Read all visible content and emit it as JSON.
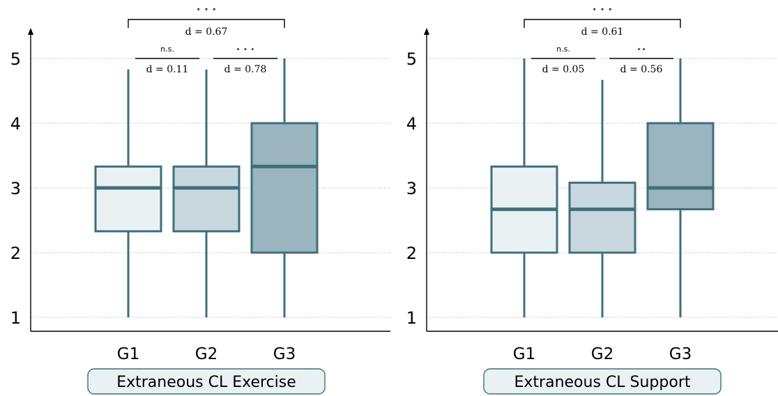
{
  "chart_data": [
    {
      "type": "box",
      "title": "Extraneous CL Exercise",
      "categories": [
        "G1",
        "G2",
        "G3"
      ],
      "yticks": [
        "1",
        "2",
        "3",
        "4",
        "5"
      ],
      "ylim": [
        0.85,
        5.5
      ],
      "grid": true,
      "series": [
        {
          "category": "G1",
          "min": 1,
          "q1": 2.33,
          "median": 3.0,
          "q3": 3.33,
          "max": 4.83,
          "fill": "#eaf1f3"
        },
        {
          "category": "G2",
          "min": 1,
          "q1": 2.33,
          "median": 3.0,
          "q3": 3.33,
          "max": 4.83,
          "fill": "#c9d8de"
        },
        {
          "category": "G3",
          "min": 1,
          "q1": 2.0,
          "median": 3.33,
          "q3": 4.0,
          "max": 5.0,
          "fill": "#9ab5be"
        }
      ],
      "comparisons": [
        {
          "from": "G1",
          "to": "G2",
          "label": "n.s.",
          "effect": "d = 0.11"
        },
        {
          "from": "G2",
          "to": "G3",
          "label": "⋆ ⋆ ⋆",
          "effect": "d = 0.78"
        },
        {
          "from": "G1",
          "to": "G3",
          "label": "⋆ ⋆ ⋆",
          "effect": "d = 0.67"
        }
      ]
    },
    {
      "type": "box",
      "title": "Extraneous CL Support",
      "categories": [
        "G1",
        "G2",
        "G3"
      ],
      "yticks": [
        "1",
        "2",
        "3",
        "4",
        "5"
      ],
      "ylim": [
        0.85,
        5.5
      ],
      "grid": true,
      "series": [
        {
          "category": "G1",
          "min": 1,
          "q1": 2.0,
          "median": 2.67,
          "q3": 3.33,
          "max": 5.0,
          "fill": "#eaf1f3"
        },
        {
          "category": "G2",
          "min": 1,
          "q1": 2.0,
          "median": 2.67,
          "q3": 3.08,
          "max": 4.67,
          "fill": "#c9d8de"
        },
        {
          "category": "G3",
          "min": 1,
          "q1": 2.67,
          "median": 3.0,
          "q3": 4.0,
          "max": 5.0,
          "fill": "#9ab5be"
        }
      ],
      "comparisons": [
        {
          "from": "G1",
          "to": "G2",
          "label": "n.s.",
          "effect": "d = 0.05"
        },
        {
          "from": "G2",
          "to": "G3",
          "label": "⋆⋆",
          "effect": "d = 0.56"
        },
        {
          "from": "G1",
          "to": "G3",
          "label": "⋆ ⋆ ⋆",
          "effect": "d = 0.61"
        }
      ]
    }
  ],
  "colors": {
    "stroke": "#3d6f7d",
    "axis": "#000000",
    "grid": "#b8b8b8",
    "title_bg": "#eaf1f3",
    "title_border": "#3d6f7d"
  }
}
